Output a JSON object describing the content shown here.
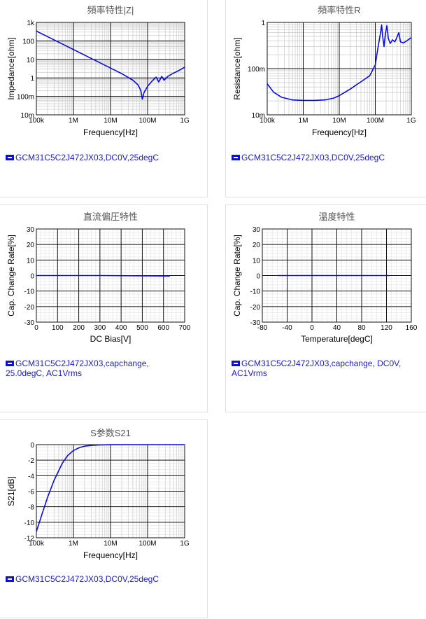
{
  "colors": {
    "series": "#0a0ae6",
    "grid": "#9a9a9a",
    "legend_text": "#1a1ad6"
  },
  "panels": [
    {
      "legend": "GCM31C5C2J472JX03,DC0V,25degC"
    },
    {
      "legend": "GCM31C5C2J472JX03,DC0V,25degC"
    },
    {
      "legend_line1": "GCM31C5C2J472JX03,capchange,",
      "legend_line2": "25.0degC, AC1Vrms"
    },
    {
      "legend_line1": "GCM31C5C2J472JX03,capchange, DC0V,",
      "legend_line2": "AC1Vrms"
    },
    {
      "legend": "GCM31C5C2J472JX03,DC0V,25degC"
    }
  ],
  "chart_data": [
    {
      "type": "line",
      "title": "頻率特性|Z|",
      "xlabel": "Frequency[Hz]",
      "ylabel": "Impedance[ohm]",
      "xscale": "log",
      "yscale": "log",
      "xlim": [
        100000,
        1000000000
      ],
      "ylim": [
        0.01,
        1000
      ],
      "xticks": [
        100000,
        1000000,
        10000000,
        100000000,
        1000000000
      ],
      "xtick_labels": [
        "100k",
        "1M",
        "10M",
        "100M",
        "1G"
      ],
      "yticks": [
        0.01,
        0.1,
        1,
        10,
        100,
        1000
      ],
      "ytick_labels": [
        "10m",
        "100m",
        "1",
        "10",
        "100",
        "1k"
      ],
      "series": [
        {
          "x": [
            100000,
            200000,
            500000,
            1000000,
            2000000,
            5000000,
            10000000,
            20000000,
            40000000,
            55000000,
            65000000,
            72000000,
            80000000,
            100000000,
            130000000,
            170000000,
            200000000,
            240000000,
            280000000,
            350000000,
            500000000,
            700000000,
            1000000000
          ],
          "y": [
            340,
            170,
            68,
            34,
            17,
            6.8,
            3.4,
            1.7,
            0.75,
            0.42,
            0.22,
            0.07,
            0.16,
            0.35,
            0.65,
            1.1,
            0.6,
            1.2,
            0.75,
            1.2,
            1.8,
            2.5,
            3.8
          ]
        }
      ]
    },
    {
      "type": "line",
      "title": "頻率特性R",
      "xlabel": "Frequency[Hz]",
      "ylabel": "Resistance[ohm]",
      "xscale": "log",
      "yscale": "log",
      "xlim": [
        100000,
        1000000000
      ],
      "ylim": [
        0.01,
        1
      ],
      "xticks": [
        100000,
        1000000,
        10000000,
        100000000,
        1000000000
      ],
      "xtick_labels": [
        "100k",
        "1M",
        "10M",
        "100M",
        "1G"
      ],
      "yticks": [
        0.01,
        0.1,
        1
      ],
      "ytick_labels": [
        "10m",
        "100m",
        "1"
      ],
      "series": [
        {
          "x": [
            100000,
            150000,
            250000,
            500000,
            1000000,
            2000000,
            4000000,
            7000000,
            10000000,
            20000000,
            40000000,
            70000000,
            100000000,
            120000000,
            140000000,
            150000000,
            160000000,
            175000000,
            190000000,
            210000000,
            230000000,
            260000000,
            300000000,
            350000000,
            400000000,
            450000000,
            500000000,
            600000000,
            750000000,
            1000000000
          ],
          "y": [
            0.047,
            0.031,
            0.024,
            0.021,
            0.0205,
            0.0205,
            0.021,
            0.023,
            0.026,
            0.036,
            0.052,
            0.07,
            0.12,
            0.3,
            0.6,
            0.88,
            0.5,
            0.3,
            0.55,
            0.85,
            0.45,
            0.35,
            0.42,
            0.38,
            0.48,
            0.6,
            0.38,
            0.36,
            0.4,
            0.47
          ]
        }
      ]
    },
    {
      "type": "line",
      "title": "直流偏圧特性",
      "xlabel": "DC Bias[V]",
      "ylabel": "Cap. Change Rate[%]",
      "xlim": [
        0,
        700
      ],
      "ylim": [
        -30,
        30
      ],
      "xticks": [
        0,
        100,
        200,
        300,
        400,
        500,
        600,
        700
      ],
      "xtick_labels": [
        "0",
        "100",
        "200",
        "300",
        "400",
        "500",
        "600",
        "700"
      ],
      "yticks": [
        -30,
        -20,
        -10,
        0,
        10,
        20,
        30
      ],
      "ytick_labels": [
        "-30",
        "-20",
        "-10",
        "0",
        "10",
        "20",
        "30"
      ],
      "series": [
        {
          "x": [
            0,
            300,
            630
          ],
          "y": [
            0,
            0,
            -0.3
          ]
        }
      ]
    },
    {
      "type": "line",
      "title": "温度特性",
      "xlabel": "Temperature[degC]",
      "ylabel": "Cap. Change Rate[%]",
      "xlim": [
        -80,
        160
      ],
      "ylim": [
        -30,
        30
      ],
      "xticks": [
        -80,
        -40,
        0,
        40,
        80,
        120,
        160
      ],
      "xtick_labels": [
        "-80",
        "-40",
        "0",
        "40",
        "80",
        "120",
        "160"
      ],
      "yticks": [
        -30,
        -20,
        -10,
        0,
        10,
        20,
        30
      ],
      "ytick_labels": [
        "-30",
        "-20",
        "-10",
        "0",
        "10",
        "20",
        "30"
      ],
      "series": [
        {
          "x": [
            -55,
            25,
            125
          ],
          "y": [
            0,
            0,
            0
          ]
        }
      ]
    },
    {
      "type": "line",
      "title": "S参数S21",
      "xlabel": "Frequency[Hz]",
      "ylabel": "S21[dB]",
      "xscale": "log",
      "xlim": [
        100000,
        1000000000
      ],
      "ylim": [
        -12,
        0
      ],
      "xticks": [
        100000,
        1000000,
        10000000,
        100000000,
        1000000000
      ],
      "xtick_labels": [
        "100k",
        "1M",
        "10M",
        "100M",
        "1G"
      ],
      "yticks": [
        -12,
        -10,
        -8,
        -6,
        -4,
        -2,
        0
      ],
      "ytick_labels": [
        "-12",
        "-10",
        "-8",
        "-6",
        "-4",
        "-2",
        "0"
      ],
      "series": [
        {
          "x": [
            100000,
            150000,
            200000,
            300000,
            500000,
            700000,
            1000000,
            1500000,
            2000000,
            3000000,
            5000000,
            10000000,
            100000000,
            1000000000
          ],
          "y": [
            -11.2,
            -8.6,
            -6.8,
            -4.6,
            -2.4,
            -1.4,
            -0.75,
            -0.35,
            -0.2,
            -0.1,
            -0.04,
            -0.01,
            0,
            0
          ]
        }
      ]
    }
  ]
}
